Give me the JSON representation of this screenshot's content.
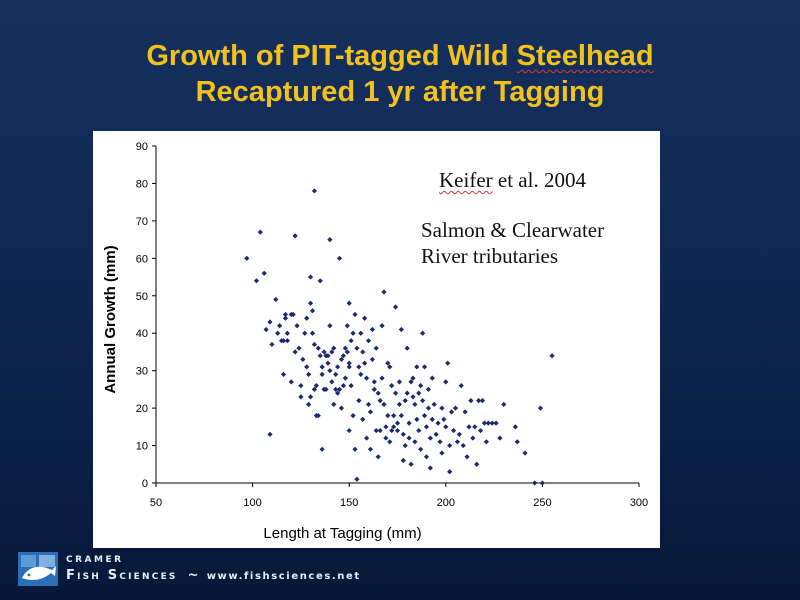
{
  "slide": {
    "title_line1_pre": "Growth of PIT-tagged Wild ",
    "title_line1_flag": "Steelhead",
    "title_line2": "Recaptured 1 yr after Tagging",
    "citation_author": "Keifer",
    "citation_rest": " et al. 2004",
    "location_line1": "Salmon & Clearwater",
    "location_line2": "River tributaries"
  },
  "footer": {
    "brand_top": "CRAMER",
    "brand_main": "Fish Sciences",
    "separator": "~",
    "url": "www.fishsciences.net"
  },
  "colors": {
    "title": "#f2c21b",
    "marker": "#1d2a6b",
    "background": "#0f2752"
  },
  "chart_data": {
    "type": "scatter",
    "title": "",
    "xlabel": "Length at Tagging (mm)",
    "ylabel": "Annual Growth (mm)",
    "xlim": [
      50,
      300
    ],
    "ylim": [
      0,
      90
    ],
    "xticks": [
      "50",
      "100",
      "150",
      "200",
      "250",
      "300"
    ],
    "yticks": [
      "0",
      "10",
      "20",
      "30",
      "40",
      "50",
      "60",
      "70",
      "80",
      "90"
    ],
    "grid": false,
    "legend": "none",
    "marker": "diamond",
    "points": [
      [
        97,
        60
      ],
      [
        102,
        54
      ],
      [
        104,
        67
      ],
      [
        106,
        56
      ],
      [
        107,
        41
      ],
      [
        109,
        13
      ],
      [
        109,
        43
      ],
      [
        110,
        37
      ],
      [
        112,
        49
      ],
      [
        113,
        40
      ],
      [
        114,
        42
      ],
      [
        115,
        38
      ],
      [
        116,
        38
      ],
      [
        116,
        29
      ],
      [
        117,
        44
      ],
      [
        117,
        45
      ],
      [
        118,
        40
      ],
      [
        118,
        38
      ],
      [
        120,
        27
      ],
      [
        120,
        45
      ],
      [
        121,
        45
      ],
      [
        122,
        66
      ],
      [
        122,
        35
      ],
      [
        123,
        42
      ],
      [
        124,
        36
      ],
      [
        125,
        23
      ],
      [
        125,
        26
      ],
      [
        126,
        33
      ],
      [
        127,
        40
      ],
      [
        128,
        31
      ],
      [
        128,
        44
      ],
      [
        129,
        21
      ],
      [
        129,
        29
      ],
      [
        130,
        55
      ],
      [
        130,
        48
      ],
      [
        130,
        23
      ],
      [
        131,
        40
      ],
      [
        131,
        46
      ],
      [
        132,
        37
      ],
      [
        132,
        78
      ],
      [
        132,
        25
      ],
      [
        133,
        18
      ],
      [
        133,
        26
      ],
      [
        134,
        36
      ],
      [
        134,
        18
      ],
      [
        135,
        34
      ],
      [
        135,
        54
      ],
      [
        136,
        31
      ],
      [
        136,
        29
      ],
      [
        136,
        9
      ],
      [
        137,
        35
      ],
      [
        137,
        25
      ],
      [
        138,
        34
      ],
      [
        138,
        25
      ],
      [
        138,
        34
      ],
      [
        139,
        32
      ],
      [
        139,
        34
      ],
      [
        140,
        30
      ],
      [
        140,
        65
      ],
      [
        140,
        42
      ],
      [
        141,
        27
      ],
      [
        141,
        35
      ],
      [
        142,
        21
      ],
      [
        142,
        36
      ],
      [
        143,
        25
      ],
      [
        143,
        29
      ],
      [
        144,
        24
      ],
      [
        144,
        31
      ],
      [
        145,
        60
      ],
      [
        145,
        25
      ],
      [
        146,
        20
      ],
      [
        146,
        33
      ],
      [
        147,
        34
      ],
      [
        147,
        26
      ],
      [
        148,
        28
      ],
      [
        148,
        36
      ],
      [
        149,
        35
      ],
      [
        149,
        42
      ],
      [
        150,
        14
      ],
      [
        150,
        31
      ],
      [
        150,
        48
      ],
      [
        150,
        32
      ],
      [
        151,
        38
      ],
      [
        151,
        26
      ],
      [
        152,
        40
      ],
      [
        152,
        18
      ],
      [
        153,
        45
      ],
      [
        153,
        9
      ],
      [
        154,
        1
      ],
      [
        154,
        36
      ],
      [
        155,
        31
      ],
      [
        155,
        22
      ],
      [
        156,
        40
      ],
      [
        156,
        29
      ],
      [
        157,
        35
      ],
      [
        157,
        17
      ],
      [
        158,
        32
      ],
      [
        158,
        44
      ],
      [
        159,
        28
      ],
      [
        159,
        12
      ],
      [
        160,
        38
      ],
      [
        160,
        21
      ],
      [
        161,
        19
      ],
      [
        161,
        9
      ],
      [
        162,
        33
      ],
      [
        162,
        41
      ],
      [
        163,
        27
      ],
      [
        163,
        25
      ],
      [
        164,
        36
      ],
      [
        164,
        14
      ],
      [
        165,
        24
      ],
      [
        165,
        7
      ],
      [
        166,
        22
      ],
      [
        166,
        14
      ],
      [
        167,
        42
      ],
      [
        167,
        28
      ],
      [
        168,
        21
      ],
      [
        168,
        51
      ],
      [
        169,
        15
      ],
      [
        169,
        12
      ],
      [
        170,
        32
      ],
      [
        170,
        18
      ],
      [
        171,
        31
      ],
      [
        171,
        11
      ],
      [
        172,
        26
      ],
      [
        172,
        14
      ],
      [
        173,
        18
      ],
      [
        173,
        15
      ],
      [
        174,
        24
      ],
      [
        174,
        47
      ],
      [
        175,
        16
      ],
      [
        175,
        14
      ],
      [
        176,
        27
      ],
      [
        176,
        21
      ],
      [
        177,
        41
      ],
      [
        177,
        18
      ],
      [
        178,
        13
      ],
      [
        178,
        6
      ],
      [
        179,
        22
      ],
      [
        179,
        10
      ],
      [
        180,
        24
      ],
      [
        180,
        36
      ],
      [
        181,
        16
      ],
      [
        181,
        12
      ],
      [
        182,
        27
      ],
      [
        182,
        5
      ],
      [
        183,
        23
      ],
      [
        183,
        28
      ],
      [
        184,
        21
      ],
      [
        184,
        11
      ],
      [
        185,
        17
      ],
      [
        185,
        31
      ],
      [
        186,
        24
      ],
      [
        186,
        14
      ],
      [
        187,
        26
      ],
      [
        187,
        9
      ],
      [
        188,
        40
      ],
      [
        188,
        22
      ],
      [
        189,
        18
      ],
      [
        189,
        31
      ],
      [
        190,
        7
      ],
      [
        190,
        15
      ],
      [
        191,
        25
      ],
      [
        191,
        20
      ],
      [
        192,
        12
      ],
      [
        192,
        4
      ],
      [
        193,
        28
      ],
      [
        193,
        17
      ],
      [
        194,
        21
      ],
      [
        195,
        13
      ],
      [
        196,
        16
      ],
      [
        197,
        11
      ],
      [
        198,
        20
      ],
      [
        198,
        8
      ],
      [
        199,
        17
      ],
      [
        200,
        15
      ],
      [
        200,
        27
      ],
      [
        201,
        32
      ],
      [
        202,
        10
      ],
      [
        202,
        3
      ],
      [
        203,
        19
      ],
      [
        204,
        14
      ],
      [
        205,
        20
      ],
      [
        206,
        11
      ],
      [
        207,
        13
      ],
      [
        208,
        26
      ],
      [
        209,
        10
      ],
      [
        210,
        19
      ],
      [
        211,
        7
      ],
      [
        212,
        15
      ],
      [
        213,
        22
      ],
      [
        214,
        12
      ],
      [
        215,
        15
      ],
      [
        216,
        5
      ],
      [
        217,
        22
      ],
      [
        218,
        14
      ],
      [
        219,
        22
      ],
      [
        220,
        16
      ],
      [
        221,
        11
      ],
      [
        222,
        16
      ],
      [
        224,
        16
      ],
      [
        226,
        16
      ],
      [
        228,
        12
      ],
      [
        230,
        21
      ],
      [
        236,
        15
      ],
      [
        237,
        11
      ],
      [
        241,
        8
      ],
      [
        246,
        0
      ],
      [
        249,
        20
      ],
      [
        250,
        0
      ],
      [
        255,
        34
      ]
    ]
  }
}
